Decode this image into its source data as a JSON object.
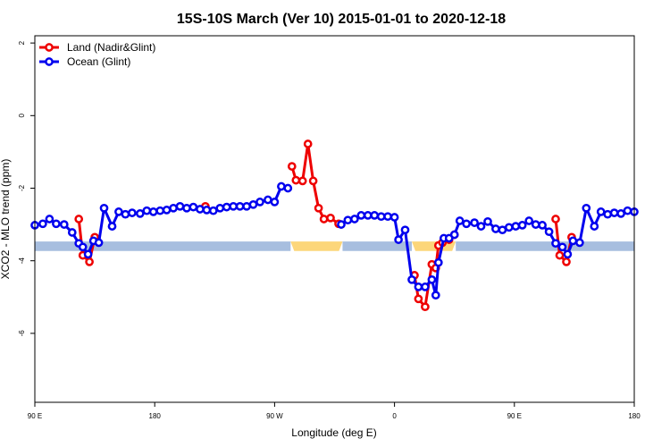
{
  "chart_data": {
    "type": "line",
    "title": "15S-10S March (Ver 10)   2015-01-01 to 2020-12-18",
    "xlabel": "Longitude (deg E)",
    "ylabel": "XCO2 - MLO trend (ppm)",
    "x_ticks": [
      {
        "value": 90,
        "label": "90 E"
      },
      {
        "value": 180,
        "label": "180"
      },
      {
        "value": 270,
        "label": "90 W"
      },
      {
        "value": 360,
        "label": "0"
      },
      {
        "value": 450,
        "label": "90 E"
      },
      {
        "value": 540,
        "label": "180"
      }
    ],
    "y_ticks": [
      {
        "value": 2,
        "label": "2"
      },
      {
        "value": 0,
        "label": "0"
      },
      {
        "value": -2,
        "label": "-2"
      },
      {
        "value": -4,
        "label": "-4"
      },
      {
        "value": -6,
        "label": "-6"
      }
    ],
    "xlim": [
      90,
      540
    ],
    "ylim": [
      -7.9,
      2.2
    ],
    "legend_position": "top-left",
    "band": {
      "y_range": [
        -3.73,
        -3.47
      ],
      "segments": [
        {
          "x": [
            90,
            282
          ],
          "color": "#a7bedf"
        },
        {
          "x": [
            282,
            321
          ],
          "color": "#fcd67a"
        },
        {
          "x": [
            321,
            373
          ],
          "color": "#a7bedf"
        },
        {
          "x": [
            373,
            406
          ],
          "color": "#fcd67a"
        },
        {
          "x": [
            406,
            540
          ],
          "color": "#a7bedf"
        }
      ]
    },
    "series": [
      {
        "name": "Land (Nadir&Glint)",
        "color": "#ee0000",
        "segments": [
          {
            "x": [
              123,
              126,
              131,
              135
            ],
            "y": [
              -2.85,
              -3.85,
              -4.03,
              -3.35
            ]
          },
          {
            "x": [
              218
            ],
            "y": [
              -2.5
            ]
          },
          {
            "x": [
              283,
              286,
              291,
              295,
              299,
              303,
              307,
              312,
              318
            ],
            "y": [
              -1.4,
              -1.78,
              -1.8,
              -0.78,
              -1.8,
              -2.55,
              -2.85,
              -2.82,
              -2.98
            ]
          },
          {
            "x": [
              375,
              378,
              383,
              388,
              391,
              393,
              396,
              401,
              405
            ],
            "y": [
              -4.4,
              -5.05,
              -5.27,
              -4.1,
              -4.2,
              -3.58,
              -3.5,
              -3.42,
              -3.28
            ]
          },
          {
            "x": [
              481,
              484,
              489,
              493
            ],
            "y": [
              -2.85,
              -3.85,
              -4.03,
              -3.35
            ]
          }
        ]
      },
      {
        "name": "Ocean (Glint)",
        "color": "#0000ee",
        "segments": [
          {
            "x": [
              90,
              96,
              101,
              106,
              112,
              118,
              123,
              126,
              130,
              134,
              138,
              142,
              148,
              153,
              158,
              163,
              169,
              174,
              179,
              184,
              189,
              194,
              199,
              204,
              209,
              214,
              219,
              224,
              229,
              234,
              239,
              244,
              249,
              254,
              259,
              265,
              270,
              275,
              280
            ],
            "y": [
              -3.02,
              -2.98,
              -2.85,
              -2.98,
              -3.0,
              -3.22,
              -3.52,
              -3.62,
              -3.82,
              -3.45,
              -3.5,
              -2.55,
              -3.05,
              -2.65,
              -2.72,
              -2.68,
              -2.7,
              -2.62,
              -2.65,
              -2.62,
              -2.6,
              -2.55,
              -2.5,
              -2.55,
              -2.52,
              -2.58,
              -2.6,
              -2.62,
              -2.55,
              -2.52,
              -2.5,
              -2.5,
              -2.5,
              -2.45,
              -2.38,
              -2.32,
              -2.38,
              -1.95,
              -2.0
            ]
          },
          {
            "x": [
              320,
              325,
              330,
              335,
              340,
              345,
              350,
              355,
              360,
              363,
              368,
              373,
              378,
              383,
              388,
              391,
              393,
              397,
              401,
              405,
              409,
              414,
              420,
              425,
              430,
              436,
              441,
              446,
              451,
              456,
              461,
              466,
              471,
              476,
              481,
              486,
              490,
              494,
              499,
              504,
              510,
              515,
              520,
              525,
              530,
              535,
              540
            ],
            "y": [
              -3.0,
              -2.88,
              -2.85,
              -2.75,
              -2.75,
              -2.75,
              -2.78,
              -2.78,
              -2.8,
              -3.42,
              -3.15,
              -4.52,
              -4.72,
              -4.72,
              -4.52,
              -4.95,
              -4.05,
              -3.38,
              -3.38,
              -3.28,
              -2.9,
              -2.98,
              -2.95,
              -3.05,
              -2.92,
              -3.12,
              -3.15,
              -3.08,
              -3.05,
              -3.02,
              -2.9,
              -3.0,
              -3.02,
              -3.2,
              -3.52,
              -3.62,
              -3.82,
              -3.45,
              -3.5,
              -2.55,
              -3.05,
              -2.65,
              -2.72,
              -2.68,
              -2.7,
              -2.62,
              -2.65
            ]
          }
        ]
      }
    ]
  }
}
